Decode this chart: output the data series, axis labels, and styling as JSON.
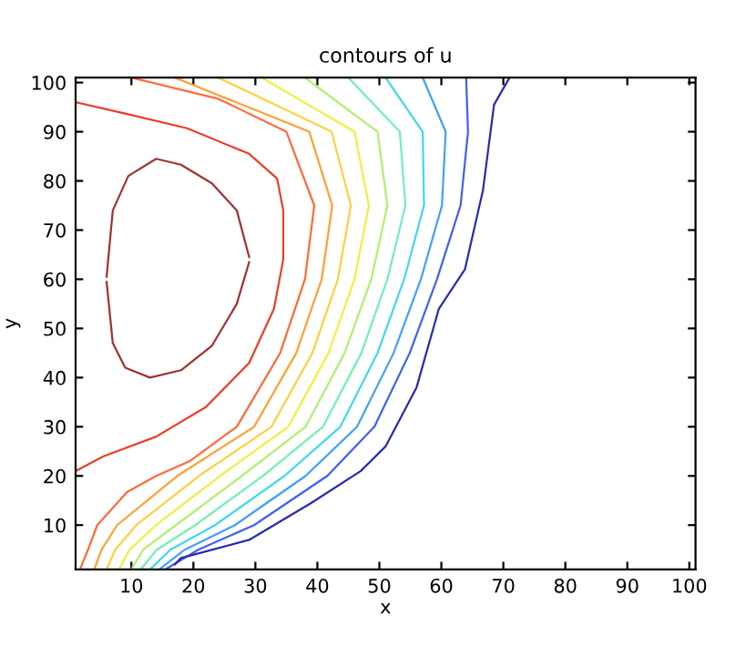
{
  "chart_data": {
    "type": "line",
    "title": "contours of u",
    "xlabel": "x",
    "ylabel": "y",
    "xlim": [
      1,
      101
    ],
    "ylim": [
      1,
      101
    ],
    "xticks": [
      10,
      20,
      30,
      40,
      50,
      60,
      70,
      80,
      90,
      100
    ],
    "yticks": [
      10,
      20,
      30,
      40,
      50,
      60,
      70,
      80,
      90,
      100
    ],
    "grid": false,
    "marker": "none",
    "line_style": "solid",
    "series": [
      {
        "color": "#a03232",
        "x": [
          6,
          7,
          9.5,
          14,
          18,
          23,
          27,
          29
        ],
        "values": [
          60.5,
          74,
          81,
          84.5,
          83.3,
          79.5,
          74,
          64.5
        ]
      },
      {
        "color": "#a03232",
        "x": [
          6,
          7,
          9,
          13,
          18,
          23,
          27,
          29
        ],
        "values": [
          59.5,
          47,
          42,
          40,
          41.5,
          46.5,
          55,
          63.5
        ]
      },
      {
        "color": "#e8402a",
        "x": [
          1,
          5.5,
          14,
          22,
          29,
          33,
          34.5,
          34.5,
          33.5,
          29,
          19,
          9,
          1
        ],
        "values": [
          21,
          24,
          28,
          34,
          43,
          54,
          64,
          74,
          80.5,
          85.5,
          90.7,
          93.7,
          96
        ]
      },
      {
        "color": "#ff6a3a",
        "x": [
          1.7,
          3,
          4.5,
          9.3,
          14,
          19.4,
          27,
          34,
          38,
          39.5,
          35,
          24,
          10
        ],
        "values": [
          1,
          5,
          10,
          16.7,
          20,
          23,
          30,
          45,
          60,
          75,
          90,
          96.7,
          101
        ]
      },
      {
        "color": "#ffa030",
        "x": [
          4,
          5.2,
          7.7,
          17.4,
          29.8,
          36.6,
          40.7,
          42.4,
          38.7,
          17
        ],
        "values": [
          1,
          5,
          10,
          20,
          30,
          45,
          60,
          75,
          90,
          101
        ]
      },
      {
        "color": "#ffd040",
        "x": [
          6,
          7.4,
          10.8,
          20.9,
          32.6,
          39.2,
          43.3,
          45.4,
          42.3,
          24
        ],
        "values": [
          1,
          5,
          10,
          20,
          30,
          45,
          60,
          75,
          90,
          101
        ]
      },
      {
        "color": "#eef040",
        "x": [
          8,
          9.7,
          14,
          24.3,
          35.3,
          41.8,
          46,
          48.3,
          46,
          31
        ],
        "values": [
          1,
          5,
          10,
          20,
          30,
          45,
          60,
          75,
          90,
          101
        ]
      },
      {
        "color": "#b0f070",
        "x": [
          10,
          11.9,
          17.2,
          27.8,
          38.1,
          44.4,
          48.7,
          51.3,
          49.7,
          38
        ],
        "values": [
          1,
          5,
          10,
          20,
          30,
          45,
          60,
          75,
          90,
          101
        ]
      },
      {
        "color": "#70f0b8",
        "x": [
          11.5,
          14.1,
          20.3,
          31.2,
          40.9,
          47.1,
          51.3,
          54.2,
          53.3,
          45
        ],
        "values": [
          1,
          5,
          10,
          20,
          30,
          45,
          60,
          75,
          90,
          101
        ]
      },
      {
        "color": "#40d8f0",
        "x": [
          13,
          16.3,
          23.5,
          34.7,
          43.7,
          49.7,
          54,
          57.2,
          57,
          51
        ],
        "values": [
          1,
          5,
          10,
          20,
          30,
          45,
          60,
          75,
          90,
          101
        ]
      },
      {
        "color": "#40a0ff",
        "x": [
          14.5,
          18.6,
          26.7,
          38.1,
          46.4,
          52.3,
          56.7,
          60.1,
          60.7,
          57
        ],
        "values": [
          1,
          5,
          10,
          20,
          30,
          45,
          60,
          75,
          90,
          101
        ]
      },
      {
        "color": "#4060f0",
        "x": [
          15.5,
          20.8,
          29.8,
          41.6,
          49.2,
          54.9,
          59.3,
          63.1,
          64.3,
          64
        ],
        "values": [
          1,
          5,
          10,
          20,
          30,
          45,
          60,
          75,
          90,
          101
        ]
      },
      {
        "color": "#2a2ab0",
        "x": [
          17,
          18,
          29,
          39,
          47,
          51,
          56,
          59.6,
          63.8,
          66.7,
          68.5,
          71
        ],
        "values": [
          2,
          3.3,
          7,
          14.5,
          21,
          26,
          38,
          54,
          62,
          78,
          95.5,
          101
        ]
      }
    ]
  }
}
